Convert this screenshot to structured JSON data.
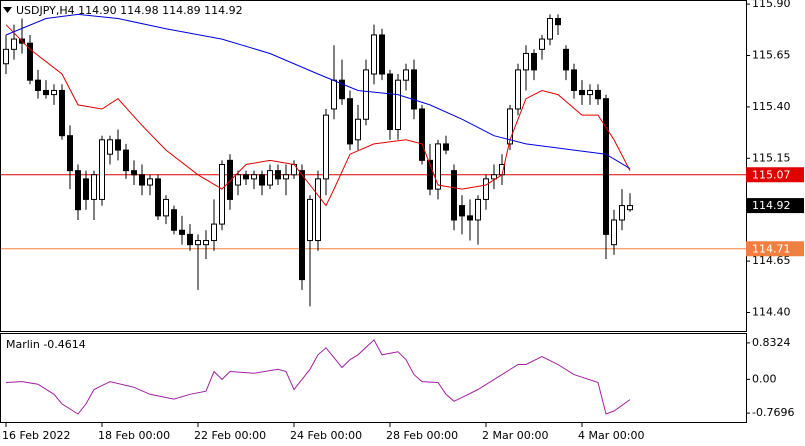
{
  "chart_data": [
    {
      "type": "candlestick",
      "title": "USDJPY,H4  114.90 114.98 114.89 114.92",
      "open": [
        115.61,
        115.68,
        115.73,
        115.71,
        115.53,
        115.48,
        115.46,
        115.48,
        115.26,
        115.09,
        115.05,
        114.95,
        114.95,
        115.17,
        115.24,
        115.19,
        115.09,
        115.07,
        115.02,
        115.05,
        114.87,
        114.9,
        114.8,
        114.78,
        114.73,
        114.73,
        114.75,
        114.83,
        115.14,
        115.02,
        115.07,
        115.05,
        115.07,
        115.02,
        115.09,
        115.05,
        115.07,
        115.09,
        114.75,
        114.75,
        115.05,
        115.39,
        115.53,
        115.44,
        115.24,
        115.34,
        115.56,
        115.75,
        115.56,
        115.29,
        115.53,
        115.58,
        115.39,
        115.14,
        115.0,
        115.22,
        115.09,
        114.92,
        114.87,
        114.85,
        114.95,
        115.05,
        115.07,
        115.22,
        115.39,
        115.58,
        115.66,
        115.68,
        115.73,
        115.83,
        115.68,
        115.58,
        115.48,
        115.46,
        115.48,
        115.44,
        114.73,
        114.85,
        114.9
      ],
      "high": [
        115.75,
        115.8,
        115.83,
        115.75,
        115.58,
        115.53,
        115.51,
        115.51,
        115.31,
        115.12,
        115.09,
        115.09,
        115.26,
        115.26,
        115.29,
        115.22,
        115.14,
        115.12,
        115.07,
        115.07,
        114.97,
        114.92,
        114.87,
        114.83,
        114.78,
        114.8,
        114.95,
        115.14,
        115.17,
        115.09,
        115.09,
        115.09,
        115.09,
        115.12,
        115.12,
        115.12,
        115.14,
        115.12,
        114.97,
        115.09,
        115.39,
        115.7,
        115.63,
        115.48,
        115.41,
        115.63,
        115.8,
        115.78,
        115.58,
        115.56,
        115.61,
        115.63,
        115.41,
        115.22,
        115.24,
        115.26,
        115.12,
        114.97,
        114.95,
        114.97,
        115.07,
        115.12,
        115.17,
        115.41,
        115.61,
        115.7,
        115.68,
        115.75,
        115.85,
        115.85,
        115.7,
        115.61,
        115.53,
        115.51,
        115.51,
        115.46,
        114.9,
        115.0,
        114.98
      ],
      "low": [
        115.56,
        115.63,
        115.66,
        115.51,
        115.44,
        115.44,
        115.41,
        115.24,
        115.0,
        114.85,
        114.9,
        114.85,
        114.92,
        115.12,
        115.14,
        115.05,
        115.02,
        114.97,
        114.97,
        114.85,
        114.83,
        114.78,
        114.73,
        114.7,
        114.51,
        114.66,
        114.7,
        114.8,
        114.9,
        114.97,
        115.02,
        115.0,
        114.97,
        115.0,
        115.02,
        114.97,
        115.05,
        114.51,
        114.43,
        114.7,
        114.97,
        115.34,
        115.41,
        115.19,
        115.19,
        115.31,
        115.51,
        115.53,
        115.24,
        115.24,
        115.48,
        115.34,
        115.12,
        114.97,
        114.95,
        115.17,
        114.8,
        114.78,
        114.75,
        114.73,
        114.9,
        115.0,
        115.02,
        115.19,
        115.36,
        115.48,
        115.53,
        115.63,
        115.7,
        115.75,
        115.53,
        115.44,
        115.41,
        115.41,
        115.41,
        114.66,
        114.68,
        114.8,
        114.89
      ],
      "close": [
        115.68,
        115.73,
        115.71,
        115.53,
        115.48,
        115.46,
        115.48,
        115.26,
        115.09,
        114.9,
        114.95,
        115.07,
        115.24,
        115.24,
        115.19,
        115.09,
        115.07,
        115.02,
        115.05,
        114.87,
        114.95,
        114.8,
        114.78,
        114.73,
        114.75,
        114.75,
        114.83,
        115.12,
        114.95,
        115.07,
        115.05,
        115.07,
        115.02,
        115.09,
        115.05,
        115.07,
        115.12,
        114.56,
        114.95,
        115.05,
        115.36,
        115.53,
        115.44,
        115.22,
        115.34,
        115.58,
        115.75,
        115.56,
        115.29,
        115.53,
        115.58,
        115.39,
        115.14,
        115.0,
        115.22,
        115.19,
        114.85,
        114.87,
        114.85,
        114.95,
        115.05,
        115.07,
        115.12,
        115.39,
        115.58,
        115.66,
        115.58,
        115.73,
        115.83,
        115.8,
        115.58,
        115.48,
        115.46,
        115.48,
        115.44,
        114.78,
        114.85,
        114.92,
        114.92
      ],
      "overlays": [
        {
          "color": "#e00000",
          "x": [
            0,
            3,
            7,
            9,
            12,
            14,
            17,
            20,
            24,
            27,
            30,
            33,
            36,
            38,
            40,
            41,
            43,
            46,
            50,
            52,
            54,
            57,
            60,
            62,
            63,
            65,
            67,
            69,
            72,
            74,
            76,
            78
          ],
          "values": [
            115.8,
            115.68,
            115.56,
            115.41,
            115.39,
            115.44,
            115.31,
            115.19,
            115.07,
            115.0,
            115.12,
            115.14,
            115.12,
            115.02,
            114.92,
            115.0,
            115.17,
            115.22,
            115.24,
            115.22,
            115.02,
            115.0,
            115.02,
            115.07,
            115.24,
            115.44,
            115.48,
            115.46,
            115.36,
            115.36,
            115.24,
            115.09
          ]
        },
        {
          "color": "#0000e0",
          "x": [
            0,
            5,
            9,
            14,
            20,
            27,
            33,
            39,
            44,
            49,
            53,
            57,
            61,
            65,
            71,
            75,
            78
          ],
          "values": [
            115.75,
            115.83,
            115.85,
            115.83,
            115.78,
            115.73,
            115.66,
            115.56,
            115.48,
            115.46,
            115.41,
            115.34,
            115.26,
            115.22,
            115.19,
            115.17,
            115.1
          ]
        }
      ],
      "hlines": [
        {
          "value": 115.07,
          "color": "#e00000"
        },
        {
          "value": 114.71,
          "color": "#f08040"
        }
      ],
      "last_price": {
        "value": 114.92,
        "color": "#000000"
      },
      "ylim": [
        114.31,
        115.92
      ],
      "yticks": [
        {
          "value": 115.9,
          "label": "115.90"
        },
        115.65,
        {
          "value": 115.4,
          "label": "115.40"
        },
        115.15,
        {
          "value": 114.9,
          "label": "114.90"
        },
        114.65,
        {
          "value": 114.4,
          "label": "114.40"
        }
      ],
      "xticks": [
        {
          "value": 0,
          "label": "16 Feb 2022"
        },
        {
          "value": 12,
          "label": "18 Feb 00:00"
        },
        {
          "value": 24,
          "label": "22 Feb 00:00"
        },
        {
          "value": 36,
          "label": "24 Feb 00:00"
        },
        {
          "value": 48,
          "label": "28 Feb 00:00"
        },
        {
          "value": 60,
          "label": "2 Mar 00:00"
        },
        {
          "value": 72,
          "label": "4 Mar 00:00"
        }
      ]
    },
    {
      "type": "line",
      "title": "Marlin -0.4614",
      "color": "#a020a0",
      "x": [
        0,
        2,
        4,
        6,
        7,
        9,
        10,
        11,
        13,
        16,
        18,
        21,
        23,
        25,
        26,
        27,
        28,
        31,
        34,
        35,
        36,
        38,
        39,
        40,
        42,
        43,
        44,
        46,
        47,
        49,
        50,
        51,
        52,
        54,
        55,
        56,
        57,
        59,
        62,
        64,
        65,
        67,
        69,
        71,
        72,
        74,
        75,
        76,
        78
      ],
      "values": [
        -0.07,
        -0.05,
        -0.11,
        -0.34,
        -0.56,
        -0.79,
        -0.56,
        -0.23,
        -0.05,
        -0.18,
        -0.34,
        -0.45,
        -0.34,
        -0.27,
        0.18,
        0.0,
        0.18,
        0.14,
        0.23,
        0.18,
        -0.23,
        0.23,
        0.56,
        0.72,
        0.27,
        0.45,
        0.56,
        0.9,
        0.56,
        0.63,
        0.45,
        0.11,
        -0.05,
        -0.07,
        -0.34,
        -0.5,
        -0.41,
        -0.23,
        0.11,
        0.34,
        0.34,
        0.52,
        0.34,
        0.11,
        0.05,
        -0.07,
        -0.79,
        -0.72,
        -0.46
      ],
      "ylim": [
        -0.972,
        1.035
      ],
      "yticks": [
        0.8324,
        {
          "value": 0,
          "label": "0.00"
        },
        -0.7696
      ]
    }
  ]
}
